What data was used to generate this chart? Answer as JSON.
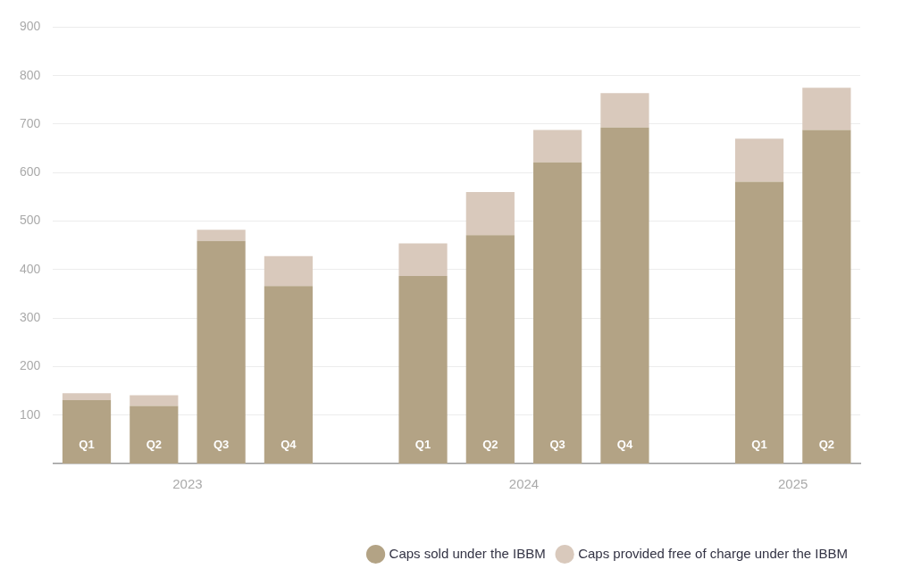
{
  "chart_data": {
    "type": "bar",
    "stacked": true,
    "categories": [
      "Q1",
      "Q2",
      "Q3",
      "Q4",
      null,
      "Q1",
      "Q2",
      "Q3",
      "Q4",
      null,
      "Q1",
      "Q2"
    ],
    "series": [
      {
        "name": "Caps sold under the IBBM",
        "color": "#b3a385",
        "values": [
          131,
          119,
          459,
          366,
          null,
          387,
          471,
          621,
          693,
          null,
          581,
          688
        ]
      },
      {
        "name": "Caps provided free of charge under the IBBM",
        "color": "#d9c9bc",
        "values": [
          14,
          22,
          23,
          62,
          null,
          67,
          89,
          67,
          71,
          null,
          89,
          87
        ]
      }
    ],
    "annotations": [
      "2023",
      "2024",
      "2025"
    ],
    "ylim": [
      0,
      900
    ],
    "yticks": [
      100,
      200,
      300,
      400,
      500,
      600,
      700,
      800,
      900
    ],
    "grid": "y",
    "legend": "bottom right"
  }
}
